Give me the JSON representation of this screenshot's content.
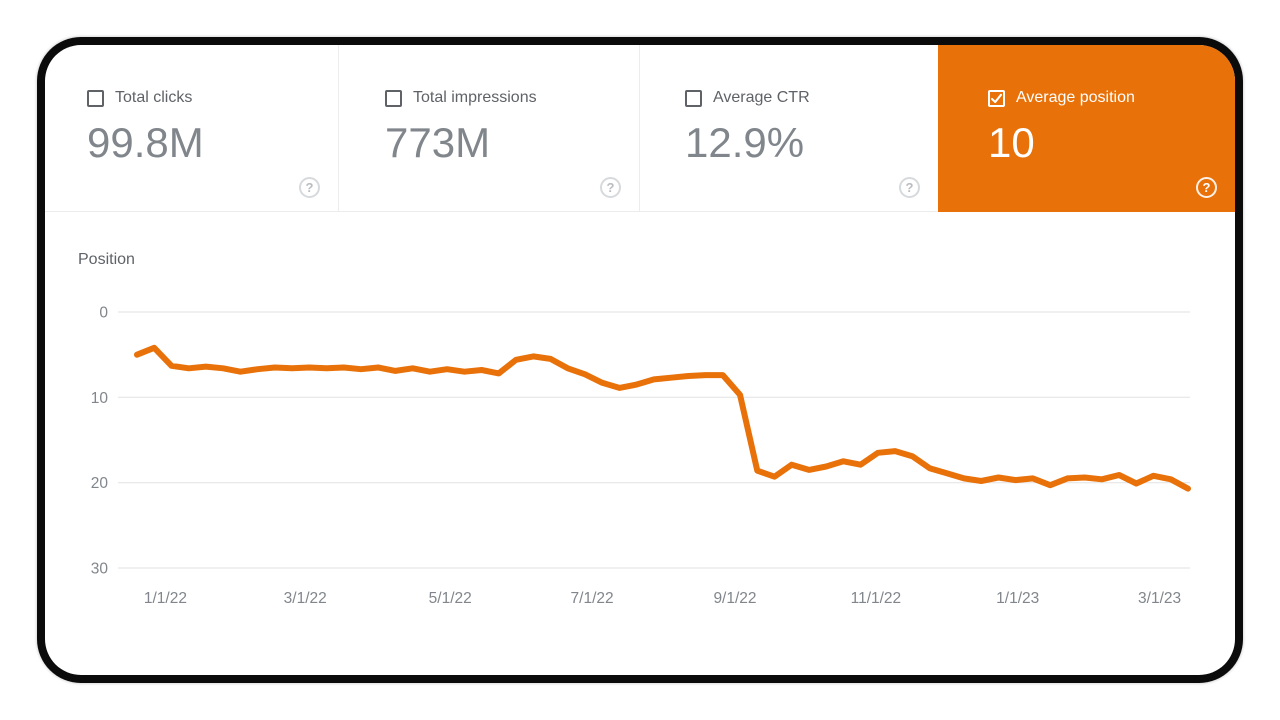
{
  "tiles": [
    {
      "label": "Total clicks",
      "value": "99.8M",
      "checked": false,
      "selected": false
    },
    {
      "label": "Total impressions",
      "value": "773M",
      "checked": false,
      "selected": false
    },
    {
      "label": "Average CTR",
      "value": "12.9%",
      "checked": false,
      "selected": false
    },
    {
      "label": "Average position",
      "value": "10",
      "checked": true,
      "selected": true
    }
  ],
  "icons": {
    "help": "?"
  },
  "colors": {
    "accent": "#e8710a",
    "value_gray": "#80868b",
    "label_gray": "#5f6368",
    "grid": "#e2e2e2",
    "tick_gray": "#80868b",
    "frame": "#0b0b0b"
  },
  "chart_data": {
    "type": "line",
    "title": "Position",
    "ylabel": "Position",
    "xlabel": "",
    "ylim": [
      0,
      30
    ],
    "y_ticks": [
      0,
      10,
      20,
      30
    ],
    "y_inverted": true,
    "grid": true,
    "legend": "none",
    "x_ticks": [
      {
        "label": "1/1/22",
        "f": 0.027
      },
      {
        "label": "3/1/22",
        "f": 0.16
      },
      {
        "label": "5/1/22",
        "f": 0.298
      },
      {
        "label": "7/1/22",
        "f": 0.433
      },
      {
        "label": "9/1/22",
        "f": 0.569
      },
      {
        "label": "11/1/22",
        "f": 0.703
      },
      {
        "label": "1/1/23",
        "f": 0.838
      },
      {
        "label": "3/1/23",
        "f": 0.973
      }
    ],
    "series": [
      {
        "name": "Average position",
        "color": "#e8710a",
        "cadence": "weekly",
        "values": [
          5.0,
          4.2,
          6.3,
          6.6,
          6.4,
          6.6,
          7.0,
          6.7,
          6.5,
          6.6,
          6.5,
          6.6,
          6.5,
          6.7,
          6.5,
          6.9,
          6.6,
          7.0,
          6.7,
          7.0,
          6.8,
          7.2,
          5.6,
          5.2,
          5.5,
          6.6,
          7.3,
          8.3,
          8.9,
          8.5,
          7.9,
          7.7,
          7.5,
          7.4,
          7.4,
          9.7,
          18.6,
          19.3,
          17.9,
          18.5,
          18.1,
          17.5,
          17.9,
          16.5,
          16.3,
          16.9,
          18.3,
          18.9,
          19.5,
          19.8,
          19.4,
          19.7,
          19.5,
          20.3,
          19.5,
          19.4,
          19.6,
          19.1,
          20.1,
          19.2,
          19.6,
          20.7
        ]
      }
    ]
  }
}
